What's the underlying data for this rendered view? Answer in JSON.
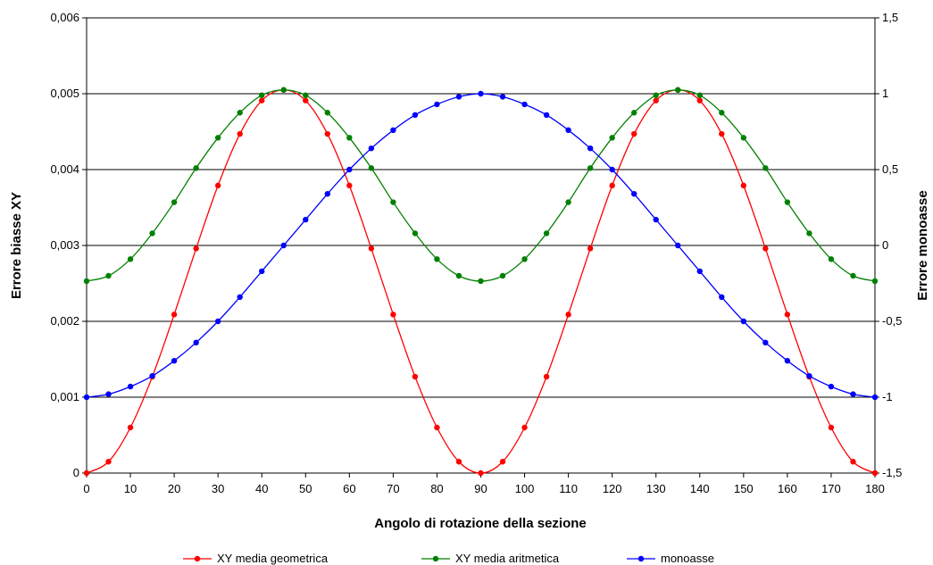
{
  "chart_data": {
    "type": "line",
    "xlabel": "Angolo di rotazione della sezione",
    "ylabel_left": "Errore biasse XY",
    "ylabel_right": "Errore monoasse",
    "xlim": [
      0,
      180
    ],
    "ylim_left": [
      0,
      0.006
    ],
    "ylim_right": [
      -1.5,
      1.5
    ],
    "grid": "horizontal",
    "legend_position": "bottom",
    "x_ticks": [
      "0",
      "10",
      "20",
      "30",
      "40",
      "50",
      "60",
      "70",
      "80",
      "90",
      "100",
      "110",
      "120",
      "130",
      "140",
      "150",
      "160",
      "170",
      "180"
    ],
    "y_ticks_left": [
      "0",
      "0,001",
      "0,002",
      "0,003",
      "0,004",
      "0,005",
      "0,006"
    ],
    "y_ticks_right": [
      "-1,5",
      "-1",
      "-0,5",
      "0",
      "0,5",
      "1",
      "1,5"
    ],
    "x": [
      0,
      5,
      10,
      15,
      20,
      25,
      30,
      35,
      40,
      45,
      50,
      55,
      60,
      65,
      70,
      75,
      80,
      85,
      90,
      95,
      100,
      105,
      110,
      115,
      120,
      125,
      130,
      135,
      140,
      145,
      150,
      155,
      160,
      165,
      170,
      175,
      180
    ],
    "series": [
      {
        "name": "XY media geometrica",
        "axis": "left",
        "color": "#ff0000",
        "values": [
          0,
          0.00015,
          0.0006,
          0.00127,
          0.00209,
          0.00296,
          0.00379,
          0.00447,
          0.00491,
          0.00505,
          0.00491,
          0.00447,
          0.00379,
          0.00296,
          0.00209,
          0.00127,
          0.0006,
          0.00015,
          0,
          0.00015,
          0.0006,
          0.00127,
          0.00209,
          0.00296,
          0.00379,
          0.00447,
          0.00491,
          0.00505,
          0.00491,
          0.00447,
          0.00379,
          0.00296,
          0.00209,
          0.00127,
          0.0006,
          0.00015,
          0
        ]
      },
      {
        "name": "XY media aritmetica",
        "axis": "left",
        "color": "#008000",
        "values": [
          0.00253,
          0.0026,
          0.00282,
          0.00316,
          0.00357,
          0.00402,
          0.00442,
          0.00475,
          0.00498,
          0.00505,
          0.00498,
          0.00475,
          0.00442,
          0.00402,
          0.00357,
          0.00316,
          0.00282,
          0.0026,
          0.00253,
          0.0026,
          0.00282,
          0.00316,
          0.00357,
          0.00402,
          0.00442,
          0.00475,
          0.00498,
          0.00505,
          0.00498,
          0.00475,
          0.00442,
          0.00402,
          0.00357,
          0.00316,
          0.00282,
          0.0026,
          0.00253
        ]
      },
      {
        "name": "monoasse",
        "axis": "right",
        "color": "#0000ff",
        "values": [
          -1,
          -0.98,
          -0.93,
          -0.86,
          -0.76,
          -0.64,
          -0.5,
          -0.34,
          -0.17,
          0,
          0.17,
          0.34,
          0.5,
          0.64,
          0.76,
          0.86,
          0.93,
          0.98,
          1,
          0.98,
          0.93,
          0.86,
          0.76,
          0.64,
          0.5,
          0.34,
          0.17,
          0,
          -0.17,
          -0.34,
          -0.5,
          -0.64,
          -0.76,
          -0.86,
          -0.93,
          -0.98,
          -1
        ]
      }
    ]
  }
}
